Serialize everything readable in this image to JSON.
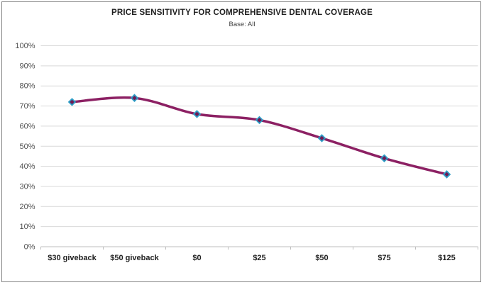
{
  "window": {
    "background": "#ffffff",
    "border_color": "#858585"
  },
  "header": {
    "title": "PRICE SENSITIVITY FOR COMPREHENSIVE DENTAL COVERAGE",
    "subtitle": "Base: All"
  },
  "chart_data": {
    "type": "line",
    "title": "PRICE SENSITIVITY FOR COMPREHENSIVE DENTAL COVERAGE",
    "subtitle": "Base: All",
    "categories": [
      "$30 giveback",
      "$50 giveback",
      "$0",
      "$25",
      "$50",
      "$75",
      "$125"
    ],
    "values": [
      72,
      74,
      66,
      63,
      54,
      44,
      36
    ],
    "ylim": [
      0,
      100
    ],
    "ytick_labels": [
      "0%",
      "10%",
      "20%",
      "30%",
      "40%",
      "50%",
      "60%",
      "70%",
      "80%",
      "90%",
      "100%"
    ],
    "grid": true,
    "legend": "none",
    "smooth": true,
    "marker": "diamond",
    "colors": {
      "line": "#8C2063",
      "marker_fill": "#6E1C55",
      "marker_border": "#2D9EC7",
      "gridline": "#D9D9D9",
      "axis_line": "#BFBFBF",
      "ytick_label": "#4d4d4d",
      "category_label": "#1f1f1f",
      "title": "#1f1f1f"
    }
  }
}
